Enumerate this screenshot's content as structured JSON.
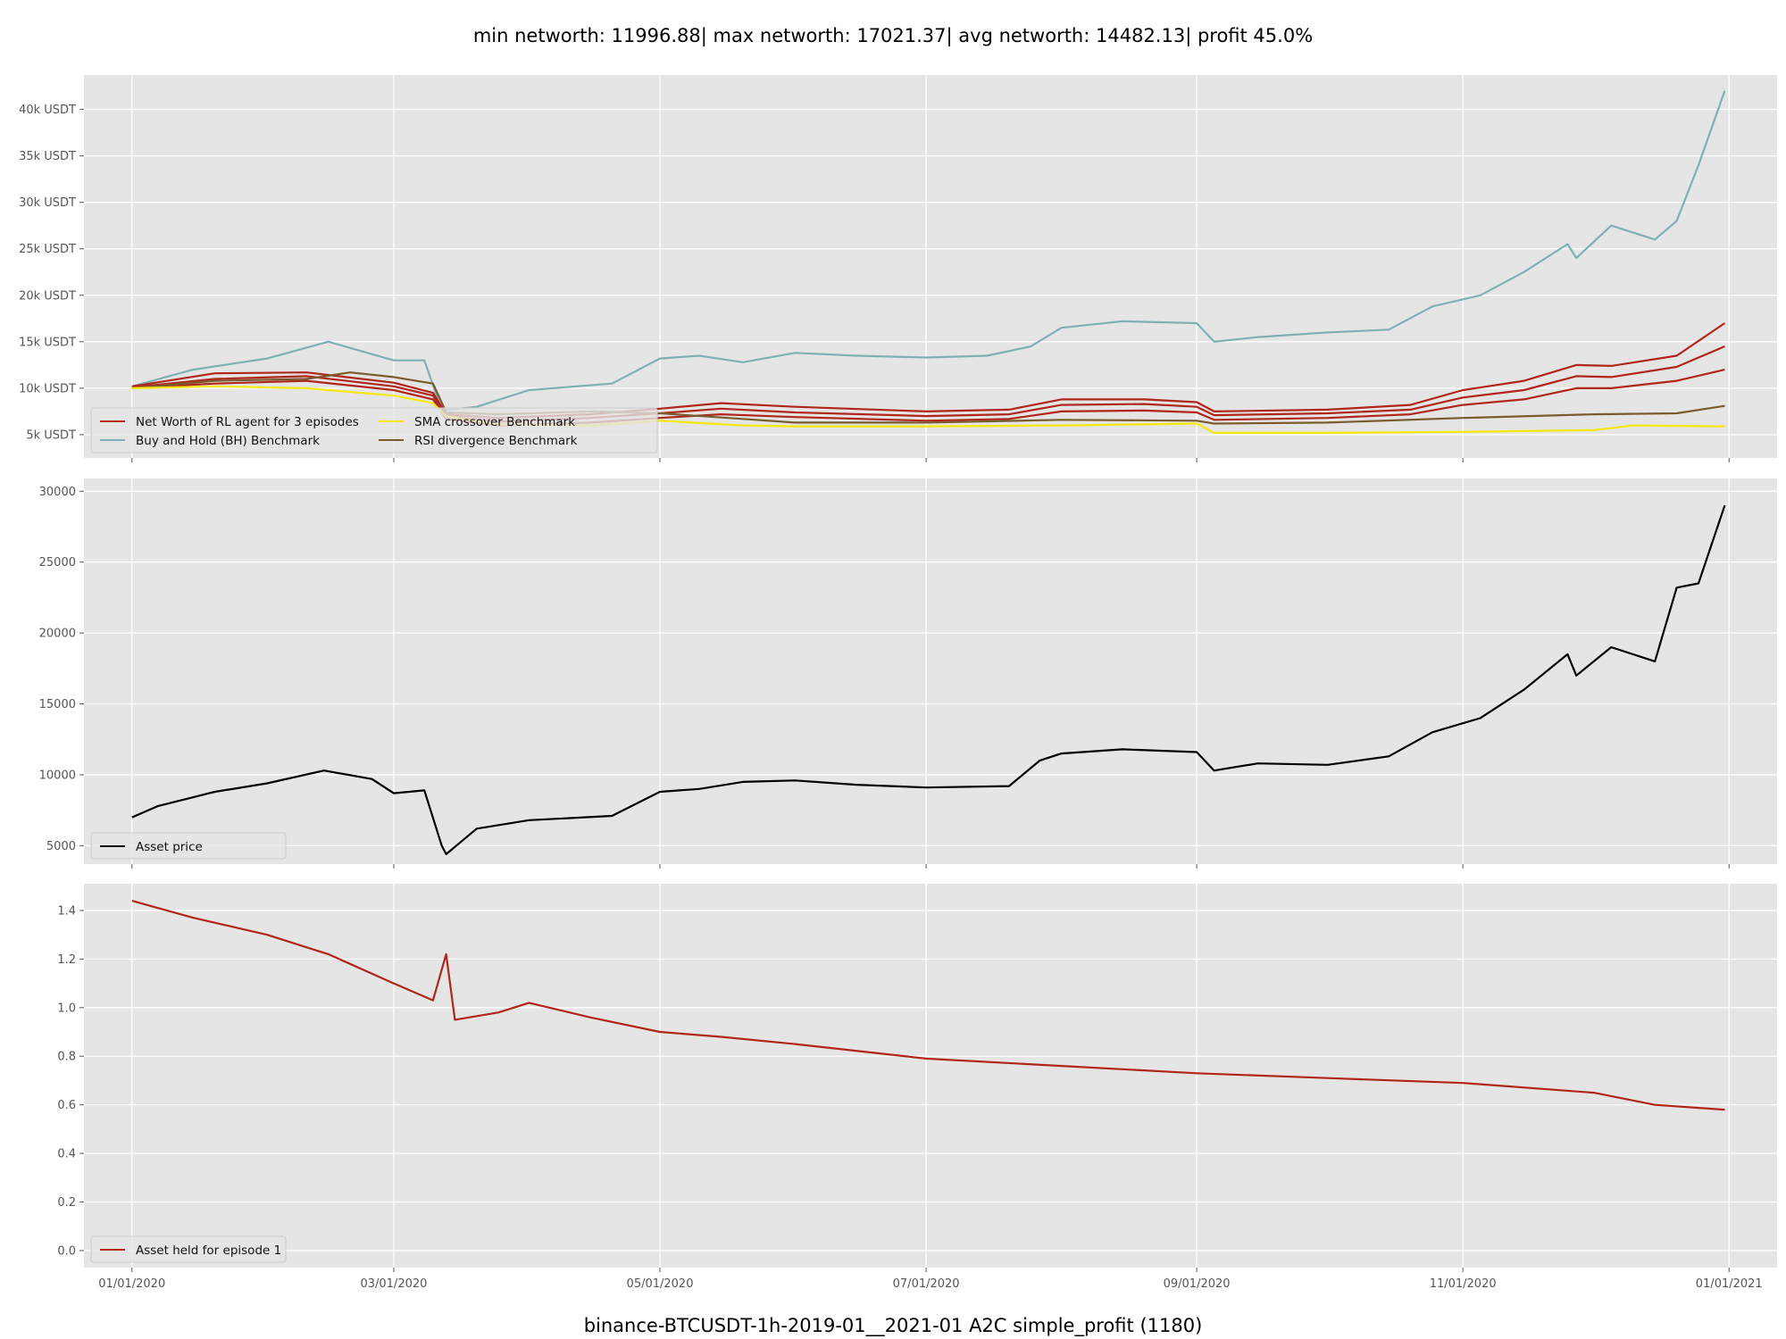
{
  "figure": {
    "title": "min networth: 11996.88| max networth: 17021.37| avg networth: 14482.13| profit 45.0%",
    "xlabel": "binance-BTCUSDT-1h-2019-01__2021-01 A2C simple_profit  (1180)"
  },
  "colors": {
    "net_worth": "#b0261b",
    "buy_and_hold": "#7fb0b5",
    "sma": "#f5e80a",
    "rsi": "#7a5b2e",
    "asset_price": "#000000",
    "asset_held": "#b0261b",
    "axes_bg": "#e5e5e5",
    "grid": "#ffffff"
  },
  "chart_data": [
    {
      "type": "line",
      "name": "networth-panel",
      "x_type": "date",
      "xlim": [
        "2019-12-21",
        "2021-01-12"
      ],
      "xticks": [
        "01/01/2020",
        "03/01/2020",
        "05/01/2020",
        "07/01/2020",
        "09/01/2020",
        "11/01/2020",
        "01/01/2021"
      ],
      "ylim": [
        2500,
        43700
      ],
      "yticks": [
        {
          "value": 5000,
          "label": "5k USDT"
        },
        {
          "value": 10000,
          "label": "10k USDT"
        },
        {
          "value": 15000,
          "label": "15k USDT"
        },
        {
          "value": 20000,
          "label": "20k USDT"
        },
        {
          "value": 25000,
          "label": "25k USDT"
        },
        {
          "value": 30000,
          "label": "30k USDT"
        },
        {
          "value": 35000,
          "label": "35k USDT"
        },
        {
          "value": 40000,
          "label": "40k USDT"
        }
      ],
      "grid": true,
      "legend_position": "bottom-left",
      "legend": [
        {
          "label": "Net Worth of RL agent for 3 episodes",
          "color_key": "net_worth"
        },
        {
          "label": "Buy and Hold (BH) Benchmark",
          "color_key": "buy_and_hold"
        },
        {
          "label": "SMA crossover Benchmark",
          "color_key": "sma"
        },
        {
          "label": "RSI divergence Benchmark",
          "color_key": "rsi"
        }
      ],
      "series": [
        {
          "color_key": "buy_and_hold",
          "x": [
            "2020-01-01",
            "2020-01-15",
            "2020-02-01",
            "2020-02-15",
            "2020-03-01",
            "2020-03-08",
            "2020-03-12",
            "2020-03-20",
            "2020-04-01",
            "2020-04-20",
            "2020-05-01",
            "2020-05-10",
            "2020-05-20",
            "2020-06-01",
            "2020-06-15",
            "2020-07-01",
            "2020-07-15",
            "2020-07-25",
            "2020-08-01",
            "2020-08-15",
            "2020-09-01",
            "2020-09-05",
            "2020-09-15",
            "2020-10-01",
            "2020-10-15",
            "2020-10-25",
            "2020-11-05",
            "2020-11-15",
            "2020-11-25",
            "2020-11-27",
            "2020-12-05",
            "2020-12-15",
            "2020-12-20",
            "2020-12-25",
            "2020-12-31"
          ],
          "y": [
            10200,
            12000,
            13200,
            15000,
            13000,
            13000,
            7600,
            8000,
            9800,
            10500,
            13200,
            13500,
            12800,
            13800,
            13500,
            13300,
            13500,
            14500,
            16500,
            17200,
            17000,
            15000,
            15500,
            16000,
            16300,
            18800,
            20000,
            22500,
            25500,
            24000,
            27500,
            26000,
            28000,
            34000,
            42000
          ]
        },
        {
          "color_key": "net_worth",
          "x": [
            "2020-01-01",
            "2020-01-20",
            "2020-02-10",
            "2020-03-01",
            "2020-03-10",
            "2020-03-13",
            "2020-03-25",
            "2020-04-15",
            "2020-05-01",
            "2020-05-15",
            "2020-06-01",
            "2020-07-01",
            "2020-07-20",
            "2020-08-01",
            "2020-08-20",
            "2020-09-01",
            "2020-09-05",
            "2020-10-01",
            "2020-10-20",
            "2020-11-01",
            "2020-11-15",
            "2020-11-27",
            "2020-12-05",
            "2020-12-20",
            "2020-12-31"
          ],
          "y": [
            10200,
            11600,
            11700,
            10600,
            9500,
            7200,
            6800,
            7200,
            7800,
            8400,
            8000,
            7500,
            7700,
            8800,
            8800,
            8500,
            7500,
            7700,
            8200,
            9800,
            10800,
            12500,
            12400,
            13500,
            17000
          ]
        },
        {
          "color_key": "net_worth",
          "x": [
            "2020-01-01",
            "2020-01-20",
            "2020-02-10",
            "2020-03-01",
            "2020-03-10",
            "2020-03-13",
            "2020-03-25",
            "2020-04-15",
            "2020-05-01",
            "2020-05-15",
            "2020-06-01",
            "2020-07-01",
            "2020-07-20",
            "2020-08-01",
            "2020-08-20",
            "2020-09-01",
            "2020-09-05",
            "2020-10-01",
            "2020-10-20",
            "2020-11-01",
            "2020-11-15",
            "2020-11-27",
            "2020-12-05",
            "2020-12-20",
            "2020-12-31"
          ],
          "y": [
            10100,
            11000,
            11300,
            10200,
            9200,
            7000,
            6400,
            6800,
            7300,
            7800,
            7400,
            7000,
            7200,
            8200,
            8300,
            8000,
            7100,
            7300,
            7700,
            9000,
            9800,
            11300,
            11200,
            12300,
            14500
          ]
        },
        {
          "color_key": "net_worth",
          "x": [
            "2020-01-01",
            "2020-01-20",
            "2020-02-10",
            "2020-03-01",
            "2020-03-10",
            "2020-03-13",
            "2020-03-25",
            "2020-04-15",
            "2020-05-01",
            "2020-05-15",
            "2020-06-01",
            "2020-07-01",
            "2020-07-20",
            "2020-08-01",
            "2020-08-20",
            "2020-09-01",
            "2020-09-05",
            "2020-10-01",
            "2020-10-20",
            "2020-11-01",
            "2020-11-15",
            "2020-11-27",
            "2020-12-05",
            "2020-12-20",
            "2020-12-31"
          ],
          "y": [
            10000,
            10500,
            10800,
            9800,
            8800,
            6700,
            6000,
            6300,
            6800,
            7200,
            6900,
            6500,
            6700,
            7500,
            7600,
            7400,
            6600,
            6800,
            7200,
            8200,
            8800,
            10000,
            10000,
            10800,
            12000
          ]
        },
        {
          "color_key": "rsi",
          "x": [
            "2020-01-01",
            "2020-01-20",
            "2020-02-10",
            "2020-02-20",
            "2020-03-01",
            "2020-03-10",
            "2020-03-13",
            "2020-03-25",
            "2020-04-15",
            "2020-05-01",
            "2020-05-20",
            "2020-06-01",
            "2020-07-01",
            "2020-08-01",
            "2020-09-01",
            "2020-09-05",
            "2020-10-01",
            "2020-11-01",
            "2020-12-01",
            "2020-12-20",
            "2020-12-31"
          ],
          "y": [
            10000,
            10800,
            11000,
            11700,
            11200,
            10500,
            7400,
            7200,
            7500,
            7300,
            6700,
            6300,
            6300,
            6600,
            6500,
            6200,
            6300,
            6800,
            7200,
            7300,
            8100
          ]
        },
        {
          "color_key": "sma",
          "x": [
            "2020-01-01",
            "2020-01-20",
            "2020-02-10",
            "2020-03-01",
            "2020-03-10",
            "2020-03-13",
            "2020-03-25",
            "2020-04-15",
            "2020-05-01",
            "2020-05-20",
            "2020-06-01",
            "2020-07-01",
            "2020-08-01",
            "2020-09-01",
            "2020-09-05",
            "2020-10-01",
            "2020-11-01",
            "2020-12-01",
            "2020-12-10",
            "2020-12-31"
          ],
          "y": [
            10000,
            10200,
            10000,
            9200,
            8400,
            7000,
            6100,
            6000,
            6500,
            6000,
            5900,
            5900,
            6000,
            6200,
            5200,
            5200,
            5300,
            5500,
            6000,
            5900
          ]
        }
      ]
    },
    {
      "type": "line",
      "name": "asset-price-panel",
      "x_type": "date",
      "xlim": [
        "2019-12-21",
        "2021-01-12"
      ],
      "xticks": [
        "01/01/2020",
        "03/01/2020",
        "05/01/2020",
        "07/01/2020",
        "09/01/2020",
        "11/01/2020",
        "01/01/2021"
      ],
      "ylim": [
        3700,
        30900
      ],
      "yticks": [
        {
          "value": 5000,
          "label": "5000"
        },
        {
          "value": 10000,
          "label": "10000"
        },
        {
          "value": 15000,
          "label": "15000"
        },
        {
          "value": 20000,
          "label": "20000"
        },
        {
          "value": 25000,
          "label": "25000"
        },
        {
          "value": 30000,
          "label": "30000"
        }
      ],
      "grid": true,
      "legend_position": "bottom-left",
      "legend": [
        {
          "label": "Asset price",
          "color_key": "asset_price"
        }
      ],
      "series": [
        {
          "color_key": "asset_price",
          "x": [
            "2020-01-01",
            "2020-01-07",
            "2020-01-20",
            "2020-02-01",
            "2020-02-14",
            "2020-02-25",
            "2020-03-01",
            "2020-03-08",
            "2020-03-12",
            "2020-03-13",
            "2020-03-20",
            "2020-04-01",
            "2020-04-20",
            "2020-05-01",
            "2020-05-10",
            "2020-05-20",
            "2020-06-01",
            "2020-06-15",
            "2020-07-01",
            "2020-07-20",
            "2020-07-27",
            "2020-08-01",
            "2020-08-15",
            "2020-09-01",
            "2020-09-05",
            "2020-09-15",
            "2020-10-01",
            "2020-10-15",
            "2020-10-25",
            "2020-11-05",
            "2020-11-15",
            "2020-11-25",
            "2020-11-27",
            "2020-12-05",
            "2020-12-15",
            "2020-12-20",
            "2020-12-25",
            "2020-12-31"
          ],
          "y": [
            7000,
            7800,
            8800,
            9400,
            10300,
            9700,
            8700,
            8900,
            5000,
            4400,
            6200,
            6800,
            7100,
            8800,
            9000,
            9500,
            9600,
            9300,
            9100,
            9200,
            11000,
            11500,
            11800,
            11600,
            10300,
            10800,
            10700,
            11300,
            13000,
            14000,
            16000,
            18500,
            17000,
            19000,
            18000,
            23200,
            23500,
            29000
          ]
        }
      ]
    },
    {
      "type": "line",
      "name": "asset-held-panel",
      "x_type": "date",
      "xlim": [
        "2019-12-21",
        "2021-01-12"
      ],
      "xticks": [
        "01/01/2020",
        "03/01/2020",
        "05/01/2020",
        "07/01/2020",
        "09/01/2020",
        "11/01/2020",
        "01/01/2021"
      ],
      "ylim": [
        -0.07,
        1.51
      ],
      "yticks": [
        {
          "value": 0.0,
          "label": "0.0"
        },
        {
          "value": 0.2,
          "label": "0.2"
        },
        {
          "value": 0.4,
          "label": "0.4"
        },
        {
          "value": 0.6,
          "label": "0.6"
        },
        {
          "value": 0.8,
          "label": "0.8"
        },
        {
          "value": 1.0,
          "label": "1.0"
        },
        {
          "value": 1.2,
          "label": "1.2"
        },
        {
          "value": 1.4,
          "label": "1.4"
        }
      ],
      "grid": true,
      "legend_position": "bottom-left",
      "legend": [
        {
          "label": "Asset held for episode 1",
          "color_key": "asset_held"
        }
      ],
      "series": [
        {
          "color_key": "asset_held",
          "x": [
            "2020-01-01",
            "2020-01-15",
            "2020-02-01",
            "2020-02-15",
            "2020-03-01",
            "2020-03-10",
            "2020-03-13",
            "2020-03-15",
            "2020-03-25",
            "2020-04-01",
            "2020-04-15",
            "2020-05-01",
            "2020-05-15",
            "2020-06-01",
            "2020-07-01",
            "2020-08-01",
            "2020-09-01",
            "2020-10-01",
            "2020-11-01",
            "2020-12-01",
            "2020-12-15",
            "2020-12-31"
          ],
          "y": [
            1.44,
            1.37,
            1.3,
            1.22,
            1.1,
            1.03,
            1.22,
            0.95,
            0.98,
            1.02,
            0.96,
            0.9,
            0.88,
            0.85,
            0.79,
            0.76,
            0.73,
            0.71,
            0.69,
            0.65,
            0.6,
            0.58
          ]
        }
      ]
    }
  ]
}
